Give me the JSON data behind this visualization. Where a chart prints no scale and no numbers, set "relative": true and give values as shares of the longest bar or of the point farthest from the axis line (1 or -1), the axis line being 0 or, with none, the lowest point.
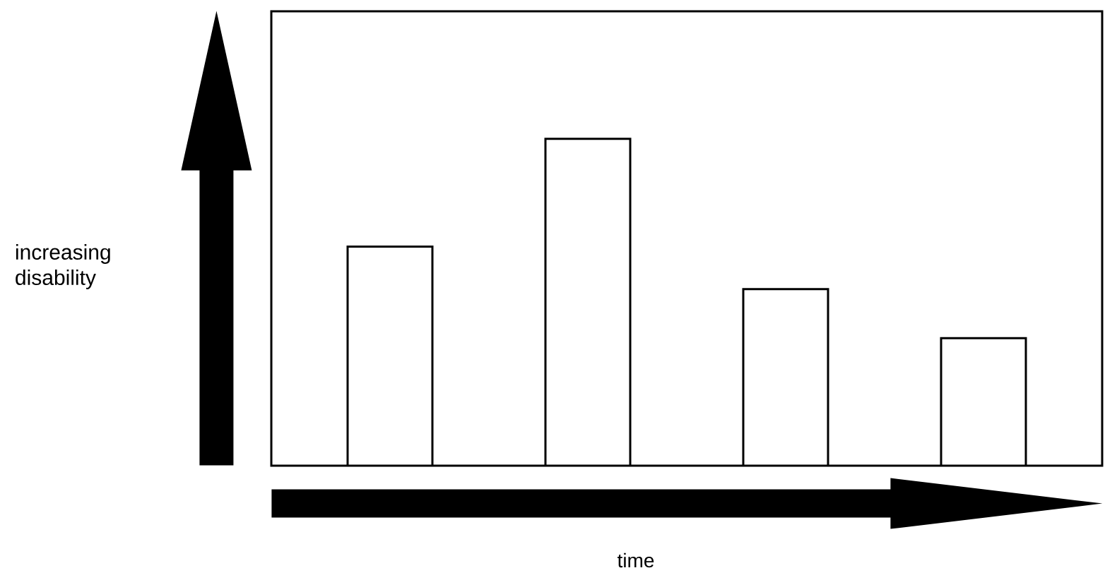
{
  "chart_data": {
    "type": "bar",
    "relative": true,
    "xlabel": "time",
    "annotations": [
      "increasing disability"
    ],
    "categories": [
      null,
      null,
      null,
      null
    ],
    "values": [
      0.67,
      1,
      0.54,
      0.39
    ],
    "color": "#ffffff"
  }
}
